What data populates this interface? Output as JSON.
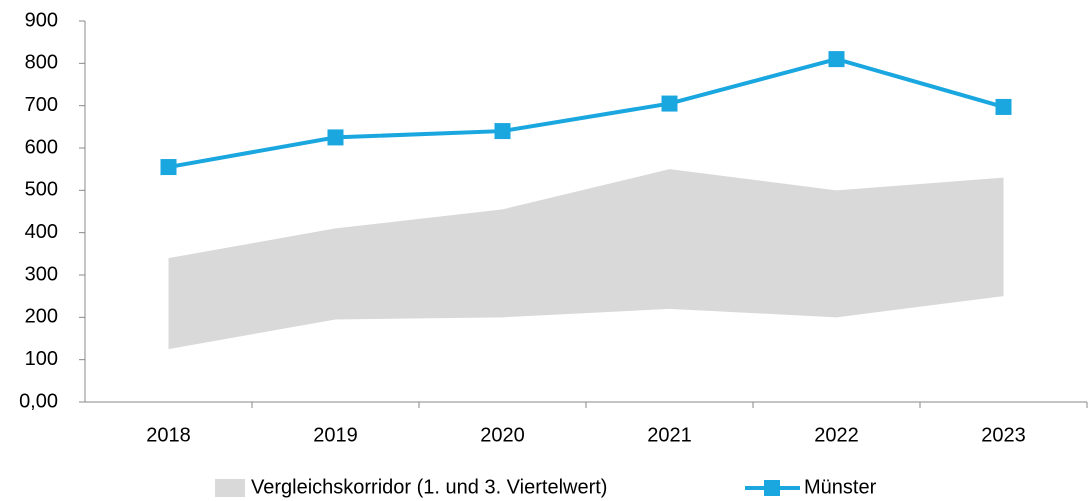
{
  "chart_data": {
    "type": "line",
    "categories": [
      "2018",
      "2019",
      "2020",
      "2021",
      "2022",
      "2023"
    ],
    "series": [
      {
        "name": "Vergleichskorridor (1. und 3. Viertelwert)",
        "color": "#d9d9d9",
        "lower": [
          125,
          195,
          200,
          220,
          200,
          250
        ],
        "upper": [
          340,
          410,
          455,
          550,
          500,
          530
        ]
      },
      {
        "name": "Münster",
        "color": "#1aa7df",
        "values": [
          555,
          625,
          640,
          705,
          810,
          697
        ]
      }
    ],
    "ylim": [
      0,
      900
    ],
    "yticks": [
      {
        "value": 0,
        "label": "0,00"
      },
      100,
      200,
      300,
      400,
      500,
      600,
      700,
      800,
      900
    ],
    "grid": false,
    "legend": "bottom"
  }
}
